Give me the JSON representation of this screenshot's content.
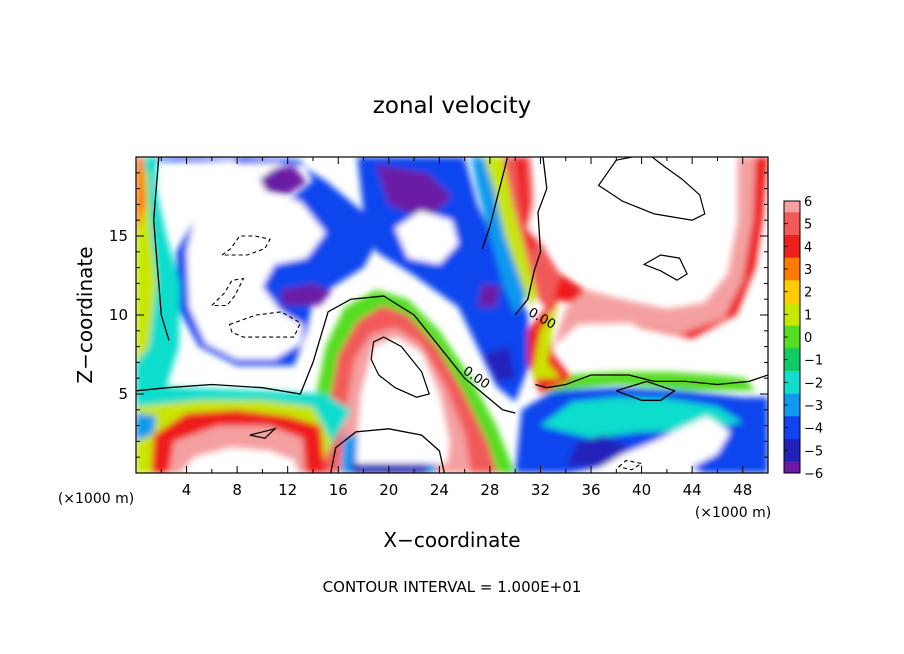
{
  "chart_data": {
    "type": "heatmap",
    "title": "zonal velocity",
    "xlabel": "X−coordinate",
    "ylabel": "Z−coordinate",
    "x_unit": "(×1000 m)",
    "y_unit": "(×1000 m)",
    "xlim": [
      0,
      50
    ],
    "ylim": [
      0,
      20
    ],
    "x_ticks": [
      4,
      8,
      12,
      16,
      20,
      24,
      28,
      32,
      36,
      40,
      44,
      48
    ],
    "x_tick_labels": [
      "4",
      "8",
      "12",
      "16",
      "20",
      "24",
      "28",
      "32",
      "36",
      "40",
      "44",
      "48"
    ],
    "y_ticks": [
      5,
      10,
      15
    ],
    "y_tick_labels": [
      "5",
      "10",
      "15"
    ],
    "colorbar": {
      "levels": [
        6,
        5,
        4,
        3,
        2,
        1,
        0,
        -1,
        -2,
        -3,
        -4,
        -5,
        -6
      ],
      "labels": [
        "6",
        "5",
        "4",
        "3",
        "2",
        "1",
        "0",
        "−1",
        "−2",
        "−3",
        "−4",
        "−5",
        "−6"
      ],
      "colors": [
        "#f4a0a0",
        "#f25a5a",
        "#ee1f1f",
        "#ff7a00",
        "#ffcc00",
        "#c8e600",
        "#55dd22",
        "#11cc66",
        "#11ddcc",
        "#1199ee",
        "#1144ee",
        "#2222bb",
        "#6a1aa6"
      ]
    },
    "contour_labels": [
      "0.00",
      "0.00"
    ],
    "note": "CONTOUR INTERVAL = 1.000E+01"
  }
}
